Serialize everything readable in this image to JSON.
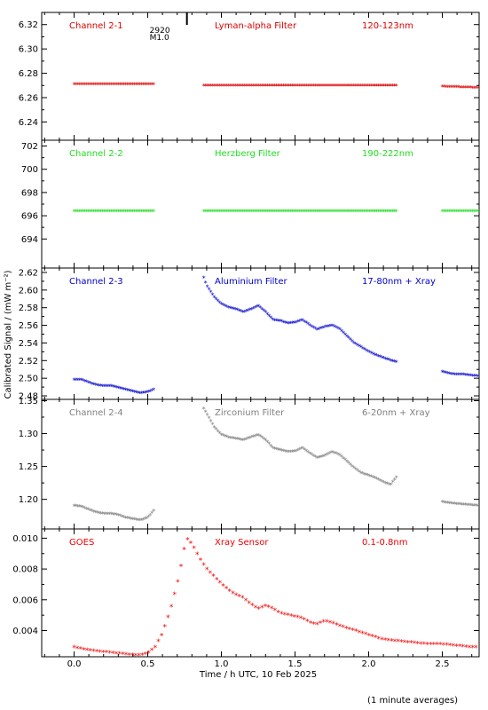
{
  "figure": {
    "ylabel": "Calibrated Signal / (mW m⁻²)",
    "xlabel": "Time / h UTC, 10 Feb 2025",
    "footnote": "(1 minute averages)",
    "event_label_1": "2920",
    "event_label_2": "M1.0",
    "event_time": 0.76,
    "xticks": [
      "0.0",
      "0.5",
      "1.0",
      "1.5",
      "2.0",
      "2.5"
    ],
    "xlim": [
      -0.22,
      2.75
    ]
  },
  "chart_data": [
    {
      "type": "scatter",
      "channel": "Channel 2-1",
      "filter": "Lyman-alpha Filter",
      "band": "120-123nm",
      "color": "#dd0000",
      "ylim": [
        6.225,
        6.33
      ],
      "yticks": [
        6.24,
        6.26,
        6.28,
        6.3,
        6.32
      ],
      "ytick_labels": [
        "6.24",
        "6.26",
        "6.28",
        "6.30",
        "6.32"
      ],
      "segments": [
        {
          "x": [
            0.0,
            0.55
          ],
          "y": [
            6.271,
            6.271
          ]
        },
        {
          "x": [
            0.88,
            2.19
          ],
          "y": [
            6.27,
            6.27
          ]
        },
        {
          "x": [
            2.5,
            2.75
          ],
          "y": [
            6.269,
            6.268
          ]
        }
      ]
    },
    {
      "type": "scatter",
      "channel": "Channel 2-2",
      "filter": "Herzberg Filter",
      "band": "190-222nm",
      "color": "#22dd22",
      "ylim": [
        691.5,
        702.5
      ],
      "yticks": [
        694,
        696,
        698,
        700,
        702
      ],
      "ytick_labels": [
        "694",
        "696",
        "698",
        "700",
        "702"
      ],
      "segments": [
        {
          "x": [
            0.0,
            0.55
          ],
          "y": [
            696.4,
            696.4
          ]
        },
        {
          "x": [
            0.88,
            2.19
          ],
          "y": [
            696.4,
            696.4
          ]
        },
        {
          "x": [
            2.5,
            2.75
          ],
          "y": [
            696.4,
            696.4
          ]
        }
      ]
    },
    {
      "type": "scatter",
      "channel": "Channel 2-3",
      "filter": "Aluminium Filter",
      "band": "17-80nm + Xray",
      "color": "#0000cc",
      "ylim": [
        2.476,
        2.625
      ],
      "yticks": [
        2.48,
        2.5,
        2.52,
        2.54,
        2.56,
        2.58,
        2.6,
        2.62
      ],
      "ytick_labels": [
        "2.48",
        "2.50",
        "2.52",
        "2.54",
        "2.56",
        "2.58",
        "2.60",
        "2.62"
      ],
      "segments": [
        {
          "x": [
            0.0,
            0.05,
            0.1,
            0.15,
            0.2,
            0.25,
            0.3,
            0.35,
            0.4,
            0.45,
            0.5,
            0.55
          ],
          "y": [
            2.498,
            2.498,
            2.495,
            2.492,
            2.491,
            2.491,
            2.489,
            2.487,
            2.485,
            2.483,
            2.484,
            2.488
          ]
        },
        {
          "x": [
            0.88,
            0.9,
            0.95,
            1.0,
            1.05,
            1.1,
            1.15,
            1.2,
            1.25,
            1.3,
            1.35,
            1.4,
            1.45,
            1.5,
            1.55,
            1.6,
            1.65,
            1.7,
            1.75,
            1.8,
            1.85,
            1.9,
            1.95,
            2.0,
            2.05,
            2.1,
            2.15,
            2.19
          ],
          "y": [
            2.614,
            2.605,
            2.592,
            2.584,
            2.58,
            2.578,
            2.575,
            2.578,
            2.582,
            2.575,
            2.566,
            2.565,
            2.562,
            2.563,
            2.566,
            2.56,
            2.555,
            2.558,
            2.56,
            2.556,
            2.548,
            2.54,
            2.535,
            2.53,
            2.526,
            2.523,
            2.52,
            2.518
          ]
        },
        {
          "x": [
            2.5,
            2.55,
            2.6,
            2.65,
            2.7,
            2.75
          ],
          "y": [
            2.507,
            2.505,
            2.504,
            2.504,
            2.503,
            2.502
          ]
        }
      ]
    },
    {
      "type": "scatter",
      "channel": "Channel 2-4",
      "filter": "Zirconium Filter",
      "band": "6-20nm + Xray",
      "color": "#808080",
      "ylim": [
        1.155,
        1.352
      ],
      "yticks": [
        1.2,
        1.25,
        1.3,
        1.35
      ],
      "ytick_labels": [
        "1.20",
        "1.25",
        "1.30",
        "1.35"
      ],
      "segments": [
        {
          "x": [
            0.0,
            0.05,
            0.1,
            0.15,
            0.2,
            0.25,
            0.3,
            0.35,
            0.4,
            0.45,
            0.5,
            0.55
          ],
          "y": [
            1.19,
            1.189,
            1.184,
            1.18,
            1.178,
            1.178,
            1.176,
            1.172,
            1.17,
            1.168,
            1.172,
            1.185
          ]
        },
        {
          "x": [
            0.88,
            0.9,
            0.95,
            1.0,
            1.05,
            1.1,
            1.15,
            1.2,
            1.25,
            1.3,
            1.35,
            1.4,
            1.45,
            1.5,
            1.55,
            1.6,
            1.65,
            1.7,
            1.75,
            1.8,
            1.85,
            1.9,
            1.95,
            2.0,
            2.05,
            2.1,
            2.15,
            2.19
          ],
          "y": [
            1.338,
            1.33,
            1.31,
            1.298,
            1.294,
            1.292,
            1.29,
            1.294,
            1.298,
            1.29,
            1.278,
            1.275,
            1.272,
            1.273,
            1.278,
            1.27,
            1.263,
            1.266,
            1.272,
            1.268,
            1.258,
            1.248,
            1.24,
            1.236,
            1.232,
            1.226,
            1.222,
            1.234
          ]
        },
        {
          "x": [
            2.5,
            2.55,
            2.6,
            2.65,
            2.7,
            2.75
          ],
          "y": [
            1.196,
            1.194,
            1.193,
            1.192,
            1.191,
            1.19
          ]
        }
      ]
    },
    {
      "type": "scatter",
      "channel": "GOES",
      "filter": "Xray Sensor",
      "band": "0.1-0.8nm",
      "color": "#ee0000",
      "ylim": [
        0.0023,
        0.0106
      ],
      "yticks": [
        0.004,
        0.006,
        0.008,
        0.01
      ],
      "ytick_labels": [
        "0.004",
        "0.006",
        "0.008",
        "0.010"
      ],
      "segments": [
        {
          "x": [
            0.0,
            0.1,
            0.2,
            0.3,
            0.4,
            0.45,
            0.5,
            0.55,
            0.6,
            0.65,
            0.7,
            0.74,
            0.76,
            0.8,
            0.85,
            0.9,
            1.0,
            1.05,
            1.1,
            1.15,
            1.2,
            1.25,
            1.3,
            1.35,
            1.4,
            1.45,
            1.5,
            1.55,
            1.6,
            1.65,
            1.7,
            1.75,
            1.8,
            1.9,
            2.0,
            2.1,
            2.2,
            2.3,
            2.4,
            2.5,
            2.6,
            2.7,
            2.75
          ],
          "y": [
            0.0029,
            0.0027,
            0.0026,
            0.0025,
            0.0024,
            0.0024,
            0.0025,
            0.0029,
            0.0038,
            0.0052,
            0.007,
            0.0088,
            0.01,
            0.0096,
            0.0087,
            0.008,
            0.007,
            0.0066,
            0.0063,
            0.0061,
            0.0057,
            0.0054,
            0.0056,
            0.0054,
            0.0051,
            0.005,
            0.0049,
            0.0048,
            0.0045,
            0.0044,
            0.0046,
            0.0045,
            0.0043,
            0.004,
            0.0037,
            0.0034,
            0.0033,
            0.0032,
            0.0031,
            0.0031,
            0.003,
            0.0029,
            0.0029
          ]
        }
      ]
    }
  ]
}
